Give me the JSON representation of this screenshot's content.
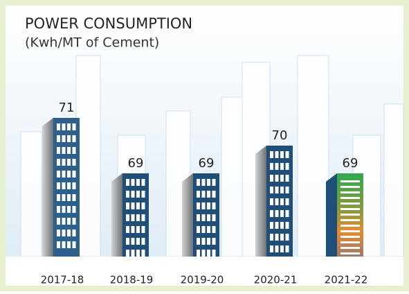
{
  "chart_data": {
    "type": "bar",
    "title": "POWER CONSUMPTION",
    "subtitle": "(Kwh/MT of Cement)",
    "categories": [
      "2017-18",
      "2018-19",
      "2019-20",
      "2020-21",
      "2021-22"
    ],
    "values": [
      71,
      69,
      69,
      70,
      69
    ],
    "colors": [
      "#2b5f8c",
      "#1f4e79",
      "#1f4e79",
      "#1f4e79",
      "#3aa655"
    ],
    "ylim": [
      66,
      72
    ]
  }
}
